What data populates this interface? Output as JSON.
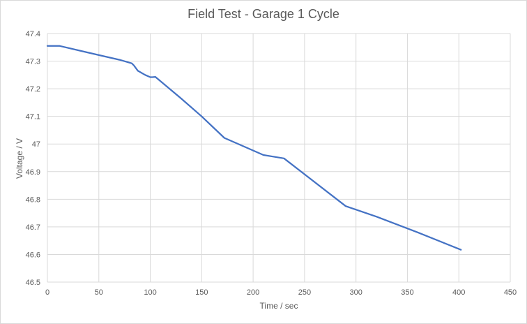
{
  "chart_data": {
    "type": "line",
    "title": "Field Test - Garage 1 Cycle",
    "xlabel": "Time / sec",
    "ylabel": "Voltage / V",
    "xlim": [
      0,
      450
    ],
    "ylim": [
      46.5,
      47.4
    ],
    "xticks": [
      0,
      50,
      100,
      150,
      200,
      250,
      300,
      350,
      400,
      450
    ],
    "yticks": [
      46.5,
      46.6,
      46.7,
      46.8,
      46.9,
      47,
      47.1,
      47.2,
      47.3,
      47.4
    ],
    "xtick_labels": [
      "0",
      "50",
      "100",
      "150",
      "200",
      "250",
      "300",
      "350",
      "400",
      "450"
    ],
    "ytick_labels": [
      "46.5",
      "46.6",
      "46.7",
      "46.8",
      "46.9",
      "47",
      "47.1",
      "47.2",
      "47.3",
      "47.4"
    ],
    "grid": true,
    "series_color": "#4472c4",
    "series": [
      {
        "x": [
          0,
          12,
          50,
          70,
          82,
          84,
          88,
          95,
          100,
          102,
          105,
          130,
          150,
          172,
          210,
          230,
          290,
          320,
          360,
          402
        ],
        "y": [
          47.355,
          47.355,
          47.322,
          47.305,
          47.292,
          47.285,
          47.265,
          47.25,
          47.242,
          47.242,
          47.243,
          47.165,
          47.1,
          47.022,
          46.96,
          46.948,
          46.775,
          46.737,
          46.68,
          46.617
        ]
      }
    ]
  }
}
